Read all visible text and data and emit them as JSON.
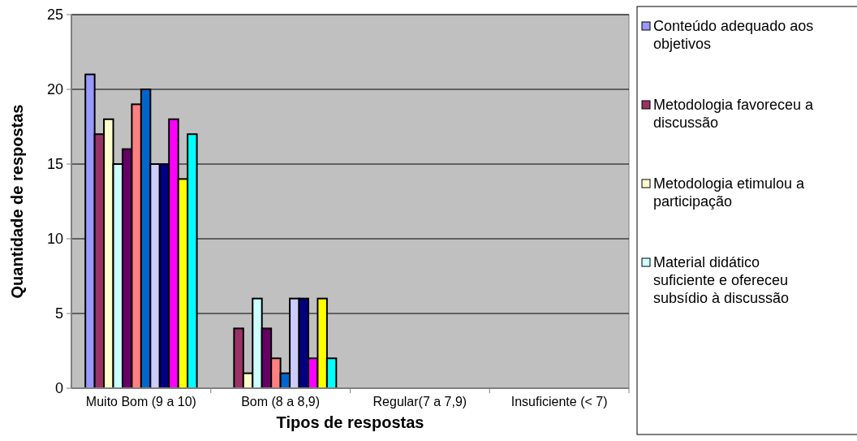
{
  "chart_data": {
    "type": "bar",
    "xlabel": "Tipos de respostas",
    "ylabel": "Quantidade de respostas",
    "categories": [
      "Muito Bom (9 a 10)",
      "Bom (8 a 8,9)",
      "Regular(7 a 7,9)",
      "Insuficiente (< 7)"
    ],
    "series": [
      {
        "name": "Conteúdo adequado aos objetivos",
        "color": "#9999ff",
        "values": [
          21,
          0,
          0,
          0
        ]
      },
      {
        "name": "Metodologia favoreceu a discussão",
        "color": "#993366",
        "values": [
          17,
          4,
          0,
          0
        ]
      },
      {
        "name": "Metodologia etimulou a participação",
        "color": "#ffffcc",
        "values": [
          18,
          1,
          0,
          0
        ]
      },
      {
        "name": "Material didático suficiente e ofereceu subsídio à discussão",
        "color": "#ccffff",
        "values": [
          15,
          6,
          0,
          0
        ]
      },
      {
        "color": "#660066",
        "values": [
          16,
          4,
          0,
          0
        ]
      },
      {
        "color": "#ff8080",
        "values": [
          19,
          2,
          0,
          0
        ]
      },
      {
        "color": "#0066cc",
        "values": [
          20,
          1,
          0,
          0
        ]
      },
      {
        "color": "#ccccff",
        "values": [
          15,
          6,
          0,
          0
        ]
      },
      {
        "color": "#000080",
        "values": [
          15,
          6,
          0,
          0
        ]
      },
      {
        "color": "#ff00ff",
        "values": [
          18,
          2,
          0,
          0
        ]
      },
      {
        "color": "#ffff00",
        "values": [
          14,
          6,
          0,
          0
        ]
      },
      {
        "color": "#00ffff",
        "values": [
          17,
          2,
          0,
          0
        ]
      }
    ],
    "ylim": [
      0,
      25
    ],
    "yticks": [
      0,
      5,
      10,
      15,
      20,
      25
    ],
    "grid": "y",
    "legend": "right"
  }
}
